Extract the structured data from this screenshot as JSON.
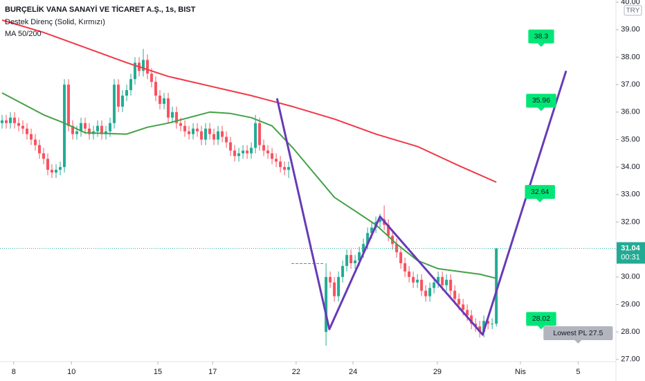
{
  "chart_data": {
    "type": "candlestick",
    "title": "BURÇELİK VANA SANAYİ VE TİCARET A.Ş., 1s, BIST",
    "legend_lines": [
      "Destek Direnç (Solid, Kırmızı)",
      "MA 50/200"
    ],
    "currency": "TRY",
    "countdown": "00:31",
    "up_color": "#22ab94",
    "down_color": "#f7525f",
    "xlim": [
      -0.5,
      147.8
    ],
    "ylim": [
      26.92,
      40.08
    ],
    "yticks": [
      {
        "value": 27,
        "label": "27.00"
      },
      {
        "value": 28,
        "label": "28.00"
      },
      {
        "value": 29,
        "label": "29.00"
      },
      {
        "value": 30,
        "label": "30.00"
      },
      {
        "value": 31,
        "label": "31.00"
      },
      {
        "value": 32,
        "label": "32.00"
      },
      {
        "value": 33,
        "label": "33.00"
      },
      {
        "value": 34,
        "label": "34.00"
      },
      {
        "value": 35,
        "label": "35.00"
      },
      {
        "value": 36,
        "label": "36.00"
      },
      {
        "value": 37,
        "label": "37.00"
      },
      {
        "value": 38,
        "label": "38.00"
      },
      {
        "value": 39,
        "label": "39.00"
      },
      {
        "value": 40,
        "label": "40.00"
      }
    ],
    "xticks": [
      {
        "value": 2.8,
        "label": "8"
      },
      {
        "value": 16.7,
        "label": "10"
      },
      {
        "value": 37.5,
        "label": "15"
      },
      {
        "value": 50.7,
        "label": "17"
      },
      {
        "value": 70.8,
        "label": "22"
      },
      {
        "value": 84.5,
        "label": "24"
      },
      {
        "value": 104.8,
        "label": "29"
      },
      {
        "value": 124.8,
        "label": "Nis"
      },
      {
        "value": 138.7,
        "label": "5"
      }
    ],
    "open": [
      35.6,
      35.7,
      35.6,
      35.8,
      35.6,
      35.5,
      35.4,
      35.2,
      35.0,
      34.8,
      34.5,
      34.3,
      33.9,
      33.8,
      33.9,
      34.0,
      37.0,
      35.5,
      35.2,
      35.3,
      35.6,
      35.4,
      35.2,
      35.3,
      35.5,
      35.2,
      35.3,
      35.6,
      37.0,
      36.2,
      36.6,
      36.8,
      37.2,
      37.8,
      37.5,
      37.9,
      37.4,
      37.1,
      36.6,
      36.3,
      36.5,
      35.8,
      36.0,
      35.6,
      35.5,
      35.3,
      35.2,
      35.4,
      35.3,
      35.0,
      35.4,
      35.2,
      35.0,
      35.3,
      35.1,
      34.9,
      34.6,
      34.4,
      34.5,
      34.6,
      34.5,
      34.7,
      35.6,
      34.8,
      34.6,
      34.5,
      34.3,
      34.2,
      34.0,
      33.9,
      30.5,
      30.5,
      30.5,
      30.5,
      30.5,
      30.5,
      30.5,
      30.5,
      28.0,
      30.0,
      29.8,
      29.3,
      30.0,
      30.4,
      30.8,
      30.5,
      30.6,
      30.9,
      31.2,
      31.6,
      31.8,
      32.0,
      32.1,
      31.9,
      31.5,
      31.2,
      30.9,
      30.5,
      30.2,
      30.0,
      29.8,
      29.9,
      29.5,
      29.3,
      29.6,
      29.8,
      30.0,
      29.7,
      29.9,
      29.5,
      29.2,
      29.0,
      28.8,
      28.6,
      28.3,
      28.2,
      28.0,
      28.4,
      28.3,
      28.3
    ],
    "high": [
      35.9,
      35.9,
      36.0,
      36.0,
      35.8,
      35.7,
      35.6,
      35.4,
      35.2,
      35.0,
      34.7,
      34.5,
      34.1,
      34.1,
      34.2,
      37.2,
      37.2,
      35.7,
      35.5,
      35.8,
      35.8,
      35.6,
      35.5,
      35.7,
      35.7,
      35.5,
      35.8,
      37.2,
      37.2,
      36.8,
      37.0,
      37.4,
      38.0,
      38.0,
      38.3,
      38.1,
      37.6,
      37.3,
      36.8,
      36.7,
      36.7,
      36.2,
      36.2,
      35.8,
      35.7,
      35.5,
      35.6,
      35.6,
      35.5,
      35.6,
      35.6,
      35.4,
      35.5,
      35.5,
      35.3,
      35.1,
      34.8,
      34.7,
      34.8,
      34.8,
      34.9,
      35.9,
      35.8,
      35.0,
      34.8,
      34.7,
      34.5,
      34.4,
      34.2,
      34.2,
      30.5,
      30.5,
      30.5,
      30.5,
      30.5,
      30.5,
      30.5,
      30.5,
      30.5,
      30.2,
      30.0,
      30.2,
      30.6,
      31.0,
      31.0,
      30.8,
      31.1,
      31.4,
      31.8,
      32.0,
      32.2,
      32.3,
      32.6,
      32.1,
      31.7,
      31.4,
      31.1,
      30.7,
      30.4,
      30.2,
      30.1,
      30.1,
      29.7,
      29.8,
      30.0,
      30.2,
      30.2,
      30.1,
      30.1,
      29.7,
      29.4,
      29.2,
      29.0,
      28.8,
      28.5,
      28.4,
      28.6,
      28.6,
      28.5,
      31.04
    ],
    "low": [
      35.4,
      35.4,
      35.4,
      35.4,
      35.3,
      35.2,
      35.0,
      34.8,
      34.6,
      34.3,
      34.1,
      33.7,
      33.6,
      33.6,
      33.7,
      33.8,
      35.3,
      35.0,
      35.0,
      35.1,
      35.2,
      35.0,
      35.0,
      35.1,
      35.0,
      35.0,
      35.1,
      35.4,
      36.0,
      36.0,
      36.4,
      36.6,
      37.0,
      37.3,
      37.3,
      37.2,
      36.9,
      36.4,
      36.1,
      36.1,
      35.6,
      35.6,
      35.4,
      35.3,
      35.1,
      35.0,
      35.0,
      35.1,
      34.8,
      34.8,
      35.0,
      34.8,
      34.8,
      34.9,
      34.7,
      34.4,
      34.2,
      34.2,
      34.3,
      34.3,
      34.3,
      34.5,
      34.6,
      34.4,
      34.3,
      34.1,
      34.0,
      33.8,
      33.7,
      33.6,
      30.5,
      30.5,
      30.5,
      30.5,
      30.5,
      30.5,
      30.5,
      30.5,
      27.5,
      29.6,
      29.1,
      29.1,
      29.8,
      30.2,
      30.3,
      30.3,
      30.4,
      30.7,
      31.0,
      31.4,
      31.6,
      31.8,
      31.7,
      31.3,
      31.0,
      30.7,
      30.3,
      30.0,
      29.8,
      29.6,
      29.6,
      29.3,
      29.1,
      29.1,
      29.4,
      29.6,
      29.5,
      29.5,
      29.3,
      29.0,
      28.8,
      28.6,
      28.4,
      28.1,
      28.0,
      27.8,
      27.8,
      28.1,
      28.1,
      28.2
    ],
    "close": [
      35.7,
      35.6,
      35.8,
      35.6,
      35.5,
      35.4,
      35.2,
      35.0,
      34.8,
      34.5,
      34.3,
      33.9,
      33.8,
      33.9,
      34.0,
      37.0,
      35.5,
      35.2,
      35.3,
      35.6,
      35.4,
      35.2,
      35.3,
      35.5,
      35.2,
      35.3,
      35.6,
      37.0,
      36.2,
      36.6,
      36.8,
      37.2,
      37.8,
      37.5,
      37.9,
      37.4,
      37.1,
      36.6,
      36.3,
      36.5,
      35.8,
      36.0,
      35.6,
      35.5,
      35.3,
      35.2,
      35.4,
      35.3,
      35.0,
      35.4,
      35.2,
      35.0,
      35.3,
      35.1,
      34.9,
      34.6,
      34.4,
      34.5,
      34.6,
      34.5,
      34.7,
      35.6,
      34.8,
      34.6,
      34.5,
      34.3,
      34.2,
      34.0,
      33.9,
      34.0,
      30.5,
      30.5,
      30.5,
      30.5,
      30.5,
      30.5,
      30.5,
      30.5,
      30.0,
      29.8,
      29.3,
      30.0,
      30.4,
      30.8,
      30.5,
      30.6,
      30.9,
      31.2,
      31.6,
      31.8,
      32.0,
      32.1,
      31.9,
      31.5,
      31.2,
      30.9,
      30.5,
      30.2,
      30.0,
      29.8,
      29.9,
      29.5,
      29.3,
      29.6,
      29.8,
      30.0,
      29.7,
      29.9,
      29.5,
      29.2,
      29.0,
      28.8,
      28.6,
      28.3,
      28.2,
      28.0,
      28.4,
      28.3,
      28.3,
      31.04
    ],
    "ma_lines": [
      {
        "color": "#f23645",
        "x": [
          0,
          10,
          20,
          30,
          40,
          50,
          60,
          70,
          80,
          90,
          100,
          110,
          119
        ],
        "values": [
          39.35,
          38.9,
          38.35,
          37.8,
          37.3,
          36.95,
          36.6,
          36.2,
          35.75,
          35.2,
          34.75,
          34.05,
          33.45
        ]
      },
      {
        "color": "#43a047",
        "x": [
          0,
          10,
          15,
          20,
          30,
          35,
          40,
          50,
          55,
          60,
          65,
          70,
          75,
          80,
          85,
          90,
          95,
          100,
          105,
          110,
          115,
          119
        ],
        "values": [
          36.7,
          35.9,
          35.6,
          35.25,
          35.2,
          35.45,
          35.6,
          36.0,
          35.95,
          35.8,
          35.5,
          34.7,
          33.8,
          32.9,
          32.4,
          31.9,
          31.2,
          30.6,
          30.3,
          30.2,
          30.1,
          29.95
        ]
      }
    ],
    "pattern": {
      "color": "#673ab7",
      "x": [
        66.2,
        78.8,
        91,
        115.7,
        135.8
      ],
      "values": [
        36.5,
        28.1,
        32.2,
        27.9,
        37.5
      ]
    },
    "annotations": [
      {
        "label": "38.3",
        "value": 38.3,
        "x": 129.8,
        "color": "#00e676"
      },
      {
        "label": "35.96",
        "value": 35.96,
        "x": 129.8,
        "color": "#00e676"
      },
      {
        "label": "32.64",
        "value": 32.64,
        "x": 129.5,
        "color": "#00e676"
      },
      {
        "label": "28.02",
        "value": 28.02,
        "x": 129.8,
        "color": "#00e676"
      },
      {
        "label": "Lowest PL 27.5",
        "value": 27.5,
        "x": 138.7,
        "color": "#b2b5be"
      }
    ]
  }
}
